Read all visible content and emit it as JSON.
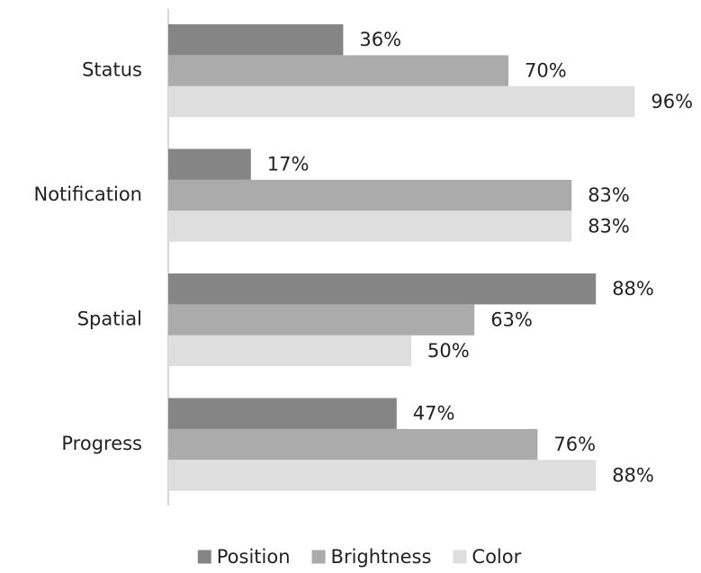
{
  "chart_data": {
    "type": "hbar",
    "categories": [
      "Status",
      "Notification",
      "Spatial",
      "Progress"
    ],
    "series": [
      {
        "name": "Position",
        "color": "#858585",
        "values": [
          36,
          17,
          88,
          47
        ],
        "value_labels": [
          "36%",
          "17%",
          "88%",
          "47%"
        ]
      },
      {
        "name": "Brightness",
        "color": "#ababab",
        "values": [
          70,
          83,
          63,
          76
        ],
        "value_labels": [
          "70%",
          "83%",
          "63%",
          "76%"
        ]
      },
      {
        "name": "Color",
        "color": "#dedede",
        "values": [
          96,
          83,
          50,
          88
        ],
        "value_labels": [
          "96%",
          "83%",
          "50%",
          "88%"
        ]
      }
    ],
    "xlim": [
      0,
      100
    ],
    "legend": "bottom"
  }
}
